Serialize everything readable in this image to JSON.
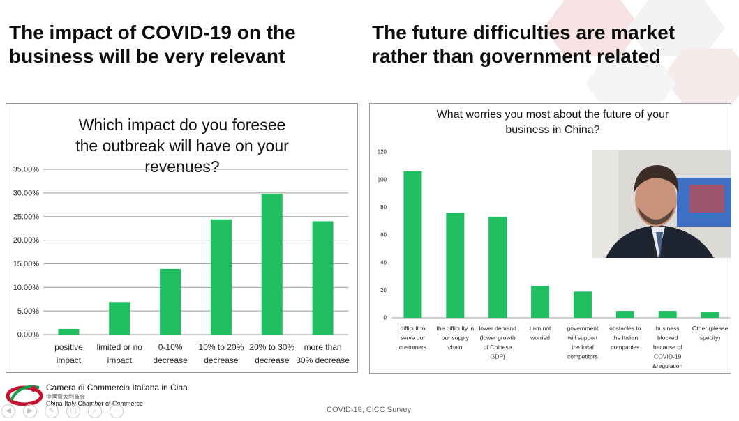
{
  "headlines": {
    "left": "The impact of COVID-19 on the business will be very relevant",
    "right": "The future difficulties are market rather than government related"
  },
  "chart_data": [
    {
      "type": "bar",
      "title": "Which impact do you foresee the outbreak will have on your revenues?",
      "categories": [
        [
          "positive",
          "impact"
        ],
        [
          "limited or no",
          "impact"
        ],
        [
          "0-10%",
          "decrease"
        ],
        [
          "10% to 20%",
          "decrease"
        ],
        [
          "20% to 30%",
          "decrease"
        ],
        [
          "more than",
          "30% decrease"
        ]
      ],
      "values": [
        1.2,
        6.9,
        13.9,
        24.4,
        29.8,
        24.0
      ],
      "ylim": [
        0,
        35
      ],
      "ytick_labels": [
        "0.00%",
        "5.00%",
        "10.00%",
        "15.00%",
        "20.00%",
        "25.00%",
        "30.00%",
        "35.00%"
      ],
      "grid": true,
      "color": "#1fbe60"
    },
    {
      "type": "bar",
      "title": "What worries you most about the future of your business in China?",
      "categories": [
        [
          "difficult to",
          "serve our",
          "customers"
        ],
        [
          "the difficulty in",
          "our supply",
          "chain"
        ],
        [
          "lower demand",
          "(lower growth",
          "of Chinese",
          "GDP)"
        ],
        [
          "I am not",
          "worried"
        ],
        [
          "government",
          "will support",
          "the local",
          "competitors"
        ],
        [
          "obstacles to",
          "the Italian",
          "companies"
        ],
        [
          "business",
          "blocked",
          "because of",
          "COVID-19",
          "&regulation"
        ],
        [
          "Other (please",
          "specify)"
        ]
      ],
      "values": [
        106,
        76,
        73,
        23,
        19,
        5,
        5,
        4
      ],
      "ylim": [
        0,
        120
      ],
      "ytick_labels": [
        "0",
        "20",
        "40",
        "60",
        "80",
        "100",
        "120"
      ],
      "grid": false,
      "color": "#1fbe60"
    }
  ],
  "logo": {
    "name": "Camera di Commercio Italiana in Cina",
    "chinese": "中国意大利商会",
    "english": "China-Italy Chamber of Commerce"
  },
  "footer": {
    "text": "COVID-19; CICC Survey"
  },
  "video": {
    "icon": "person-video-icon"
  },
  "controls": [
    {
      "icon": "prev-icon",
      "glyph": "◀"
    },
    {
      "icon": "play-icon",
      "glyph": "▶"
    },
    {
      "icon": "pen-icon",
      "glyph": "✎"
    },
    {
      "icon": "slides-icon",
      "glyph": "▢"
    },
    {
      "icon": "zoom-icon",
      "glyph": "⌕"
    },
    {
      "icon": "more-icon",
      "glyph": "⋯"
    }
  ]
}
